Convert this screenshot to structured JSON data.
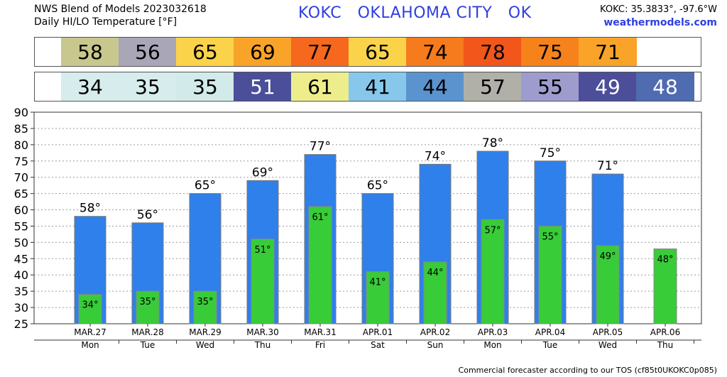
{
  "header": {
    "line1": "NWS Blend of Models 2023032618",
    "line2": "Daily HI/LO Temperature [°F]",
    "station_title": "KOKC   OKLAHOMA CITY   OK",
    "coords": "KOKC: 35.3833°, -97.6°W",
    "site": "weathermodels.com"
  },
  "footer": "Commercial forecaster according to our TOS (cf85t0UKOKC0p085)",
  "strip_hi": {
    "values": [
      "58",
      "56",
      "65",
      "69",
      "77",
      "65",
      "74",
      "78",
      "75",
      "71"
    ],
    "colors": [
      "#c8c88e",
      "#a9a6b8",
      "#fbd34a",
      "#f9a329",
      "#f5681e",
      "#fbd34a",
      "#f67b1c",
      "#f2561a",
      "#f6821c",
      "#f9a329"
    ],
    "text_color": "#000000"
  },
  "strip_lo": {
    "values": [
      "34",
      "35",
      "35",
      "51",
      "61",
      "41",
      "44",
      "57",
      "55",
      "49",
      "48"
    ],
    "colors": [
      "#d7ecec",
      "#d7ecec",
      "#d2eaea",
      "#4b4e99",
      "#eded8c",
      "#88c7ec",
      "#5b93cf",
      "#b0b0a8",
      "#9e9ccd",
      "#4c4e99",
      "#4f6cb0"
    ],
    "text_colors": [
      "#000000",
      "#000000",
      "#000000",
      "#ffffff",
      "#000000",
      "#000000",
      "#000000",
      "#000000",
      "#000000",
      "#ffffff",
      "#ffffff"
    ]
  },
  "chart_data": {
    "type": "bar",
    "categories": [
      "MAR.27",
      "MAR.28",
      "MAR.29",
      "MAR.30",
      "MAR.31",
      "APR.01",
      "APR.02",
      "APR.03",
      "APR.04",
      "APR.05",
      "APR.06"
    ],
    "weekdays": [
      "Mon",
      "Tue",
      "Wed",
      "Thu",
      "Fri",
      "Sat",
      "Sun",
      "Mon",
      "Tue",
      "Wed",
      "Thu"
    ],
    "series": [
      {
        "name": "High",
        "values": [
          58,
          56,
          65,
          69,
          77,
          65,
          74,
          78,
          75,
          71,
          null
        ],
        "labels": [
          "58°",
          "56°",
          "65°",
          "69°",
          "77°",
          "65°",
          "74°",
          "78°",
          "75°",
          "71°",
          ""
        ]
      },
      {
        "name": "Low",
        "values": [
          34,
          35,
          35,
          51,
          61,
          41,
          44,
          57,
          55,
          49,
          48
        ],
        "labels": [
          "34°",
          "35°",
          "35°",
          "51°",
          "61°",
          "41°",
          "44°",
          "57°",
          "55°",
          "49°",
          "48°"
        ]
      }
    ],
    "yticks": [
      "25",
      "30",
      "35",
      "40",
      "45",
      "50",
      "55",
      "60",
      "65",
      "70",
      "75",
      "80",
      "85",
      "90"
    ],
    "ylim": [
      25,
      90
    ],
    "grid": true,
    "colors": {
      "high": "#2f80ea",
      "low": "#38cc38"
    }
  }
}
